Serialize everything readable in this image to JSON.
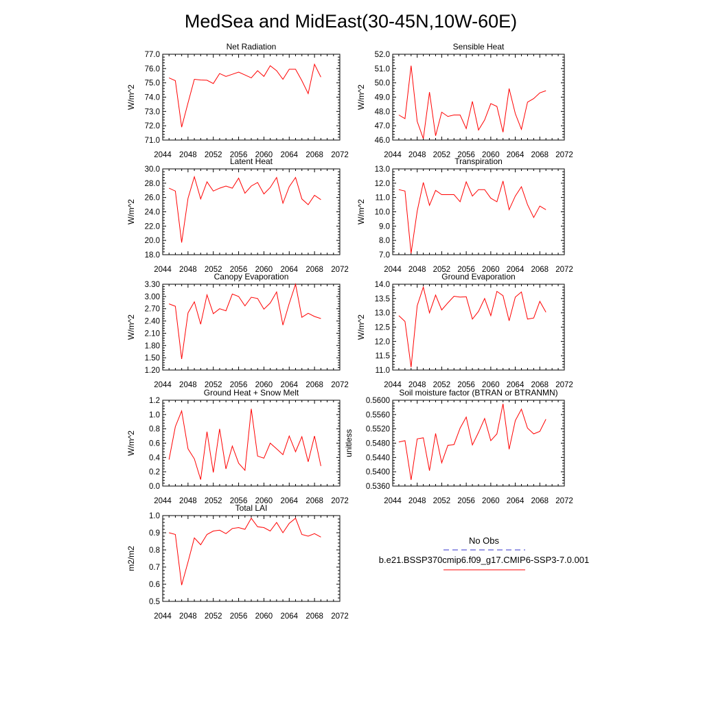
{
  "title": "MedSea and MidEast(30-45N,10W-60E)",
  "legend": {
    "obs_label": "No Obs",
    "obs_color": "#3333cc",
    "model_label": "b.e21.BSSP370cmip6.f09_g17.CMIP6-SSP3-7.0.001",
    "model_color": "#ff0000"
  },
  "chart_data": [
    {
      "type": "line",
      "title": "Net Radiation",
      "ylabel": "W/m^2",
      "xlim": [
        2044,
        2072
      ],
      "ylim": [
        71.0,
        77.0
      ],
      "xticks": [
        2044,
        2048,
        2052,
        2056,
        2060,
        2064,
        2068,
        2072
      ],
      "yticks": [
        "71.0",
        "72.0",
        "73.0",
        "74.0",
        "75.0",
        "76.0",
        "77.0"
      ],
      "x": [
        2045,
        2046,
        2047,
        2048,
        2049,
        2050,
        2051,
        2052,
        2053,
        2054,
        2055,
        2056,
        2057,
        2058,
        2059,
        2060,
        2061,
        2062,
        2063,
        2064,
        2065,
        2066,
        2067,
        2068,
        2069
      ],
      "series": [
        {
          "values": [
            75.35,
            75.15,
            71.9,
            73.6,
            75.25,
            75.2,
            75.18,
            74.95,
            75.65,
            75.45,
            75.6,
            75.75,
            75.55,
            75.35,
            75.85,
            75.45,
            76.2,
            75.85,
            75.25,
            75.95,
            75.95,
            75.15,
            74.25,
            76.3,
            75.4
          ]
        }
      ]
    },
    {
      "type": "line",
      "title": "Sensible Heat",
      "ylabel": "W/m^2",
      "xlim": [
        2044,
        2072
      ],
      "ylim": [
        46.0,
        52.0
      ],
      "xticks": [
        2044,
        2048,
        2052,
        2056,
        2060,
        2064,
        2068,
        2072
      ],
      "yticks": [
        "46.0",
        "47.0",
        "48.0",
        "49.0",
        "50.0",
        "51.0",
        "52.0"
      ],
      "x": [
        2045,
        2046,
        2047,
        2048,
        2049,
        2050,
        2051,
        2052,
        2053,
        2054,
        2055,
        2056,
        2057,
        2058,
        2059,
        2060,
        2061,
        2062,
        2063,
        2064,
        2065,
        2066,
        2067,
        2068,
        2069
      ],
      "series": [
        {
          "values": [
            47.75,
            47.5,
            51.2,
            47.3,
            46.1,
            49.35,
            46.3,
            47.95,
            47.65,
            47.75,
            47.75,
            46.8,
            48.7,
            46.7,
            47.4,
            48.55,
            48.35,
            46.55,
            49.6,
            47.85,
            46.75,
            48.65,
            48.9,
            49.3,
            49.45
          ]
        }
      ]
    },
    {
      "type": "line",
      "title": "Latent Heat",
      "ylabel": "W/m^2",
      "xlim": [
        2044,
        2072
      ],
      "ylim": [
        18.0,
        30.0
      ],
      "xticks": [
        2044,
        2048,
        2052,
        2056,
        2060,
        2064,
        2068,
        2072
      ],
      "yticks": [
        "18.0",
        "20.0",
        "22.0",
        "24.0",
        "26.0",
        "28.0",
        "30.0"
      ],
      "x": [
        2045,
        2046,
        2047,
        2048,
        2049,
        2050,
        2051,
        2052,
        2053,
        2054,
        2055,
        2056,
        2057,
        2058,
        2059,
        2060,
        2061,
        2062,
        2063,
        2064,
        2065,
        2066,
        2067,
        2068,
        2069
      ],
      "series": [
        {
          "values": [
            27.3,
            26.9,
            19.7,
            25.9,
            28.9,
            25.8,
            28.2,
            26.9,
            27.3,
            27.6,
            27.3,
            28.7,
            26.6,
            27.6,
            28.1,
            26.5,
            27.4,
            28.8,
            25.2,
            27.5,
            28.8,
            25.8,
            25.0,
            26.3,
            25.7
          ]
        }
      ]
    },
    {
      "type": "line",
      "title": "Transpiration",
      "ylabel": "W/m^2",
      "xlim": [
        2044,
        2072
      ],
      "ylim": [
        7.0,
        13.0
      ],
      "xticks": [
        2044,
        2048,
        2052,
        2056,
        2060,
        2064,
        2068,
        2072
      ],
      "yticks": [
        "7.0",
        "8.0",
        "9.0",
        "10.0",
        "11.0",
        "12.0",
        "13.0"
      ],
      "x": [
        2045,
        2046,
        2047,
        2048,
        2049,
        2050,
        2051,
        2052,
        2053,
        2054,
        2055,
        2056,
        2057,
        2058,
        2059,
        2060,
        2061,
        2062,
        2063,
        2064,
        2065,
        2066,
        2067,
        2068,
        2069
      ],
      "series": [
        {
          "values": [
            11.55,
            11.45,
            7.1,
            10.05,
            12.05,
            10.45,
            11.5,
            11.2,
            11.2,
            11.2,
            10.7,
            12.1,
            11.1,
            11.55,
            11.55,
            10.95,
            10.7,
            12.15,
            10.15,
            11.1,
            11.75,
            10.5,
            9.6,
            10.4,
            10.15
          ]
        }
      ]
    },
    {
      "type": "line",
      "title": "Canopy Evaporation",
      "ylabel": "W/m^2",
      "xlim": [
        2044,
        2072
      ],
      "ylim": [
        1.2,
        3.3
      ],
      "xticks": [
        2044,
        2048,
        2052,
        2056,
        2060,
        2064,
        2068,
        2072
      ],
      "yticks": [
        "1.20",
        "1.50",
        "1.80",
        "2.10",
        "2.40",
        "2.70",
        "3.00",
        "3.30"
      ],
      "x": [
        2045,
        2046,
        2047,
        2048,
        2049,
        2050,
        2051,
        2052,
        2053,
        2054,
        2055,
        2056,
        2057,
        2058,
        2059,
        2060,
        2061,
        2062,
        2063,
        2064,
        2065,
        2066,
        2067,
        2068,
        2069
      ],
      "series": [
        {
          "values": [
            2.82,
            2.76,
            1.47,
            2.6,
            2.87,
            2.32,
            3.04,
            2.58,
            2.7,
            2.65,
            3.06,
            3.0,
            2.77,
            2.98,
            2.95,
            2.69,
            2.84,
            3.11,
            2.3,
            2.83,
            3.3,
            2.49,
            2.59,
            2.51,
            2.46
          ]
        }
      ]
    },
    {
      "type": "line",
      "title": "Ground Evaporation",
      "ylabel": "W/m^2",
      "xlim": [
        2044,
        2072
      ],
      "ylim": [
        11.0,
        14.0
      ],
      "xticks": [
        2044,
        2048,
        2052,
        2056,
        2060,
        2064,
        2068,
        2072
      ],
      "yticks": [
        "11.0",
        "11.5",
        "12.0",
        "12.5",
        "13.0",
        "13.5",
        "14.0"
      ],
      "x": [
        2045,
        2046,
        2047,
        2048,
        2049,
        2050,
        2051,
        2052,
        2053,
        2054,
        2055,
        2056,
        2057,
        2058,
        2059,
        2060,
        2061,
        2062,
        2063,
        2064,
        2065,
        2066,
        2067,
        2068,
        2069
      ],
      "series": [
        {
          "values": [
            12.9,
            12.7,
            11.1,
            13.25,
            13.9,
            13.0,
            13.62,
            13.1,
            13.35,
            13.58,
            13.55,
            13.56,
            12.78,
            13.05,
            13.5,
            12.9,
            13.75,
            13.6,
            12.72,
            13.55,
            13.73,
            12.78,
            12.82,
            13.4,
            13.02
          ]
        }
      ]
    },
    {
      "type": "line",
      "title": "Ground Heat + Snow Melt",
      "ylabel": "W/m^2",
      "xlim": [
        2044,
        2072
      ],
      "ylim": [
        0.0,
        1.2
      ],
      "xticks": [
        2044,
        2048,
        2052,
        2056,
        2060,
        2064,
        2068,
        2072
      ],
      "yticks": [
        "0.0",
        "0.2",
        "0.4",
        "0.6",
        "0.8",
        "1.0",
        "1.2"
      ],
      "x": [
        2045,
        2046,
        2047,
        2048,
        2049,
        2050,
        2051,
        2052,
        2053,
        2054,
        2055,
        2056,
        2057,
        2058,
        2059,
        2060,
        2061,
        2062,
        2063,
        2064,
        2065,
        2066,
        2067,
        2068,
        2069
      ],
      "series": [
        {
          "values": [
            0.37,
            0.83,
            1.05,
            0.52,
            0.38,
            0.09,
            0.76,
            0.19,
            0.8,
            0.24,
            0.56,
            0.32,
            0.22,
            1.08,
            0.42,
            0.39,
            0.6,
            0.52,
            0.44,
            0.7,
            0.48,
            0.69,
            0.34,
            0.7,
            0.28
          ]
        }
      ]
    },
    {
      "type": "line",
      "title": "Soil moisture factor (BTRAN or BTRANMN)",
      "ylabel": "unitless",
      "xlim": [
        2044,
        2072
      ],
      "ylim": [
        0.536,
        0.56
      ],
      "xticks": [
        2044,
        2048,
        2052,
        2056,
        2060,
        2064,
        2068,
        2072
      ],
      "yticks": [
        "0.5360",
        "0.5400",
        "0.5440",
        "0.5480",
        "0.5520",
        "0.5560",
        "0.5600"
      ],
      "x": [
        2045,
        2046,
        2047,
        2048,
        2049,
        2050,
        2051,
        2052,
        2053,
        2054,
        2055,
        2056,
        2057,
        2058,
        2059,
        2060,
        2061,
        2062,
        2063,
        2064,
        2065,
        2066,
        2067,
        2068,
        2069
      ],
      "series": [
        {
          "values": [
            0.5483,
            0.5487,
            0.5377,
            0.5492,
            0.5495,
            0.5403,
            0.5507,
            0.5425,
            0.5474,
            0.5476,
            0.5522,
            0.5553,
            0.5475,
            0.551,
            0.5549,
            0.5487,
            0.5506,
            0.559,
            0.5463,
            0.5543,
            0.5575,
            0.5522,
            0.5506,
            0.5513,
            0.5547
          ]
        }
      ]
    },
    {
      "type": "line",
      "title": "Total LAI",
      "ylabel": "m2/m2",
      "xlim": [
        2044,
        2072
      ],
      "ylim": [
        0.5,
        1.0
      ],
      "xticks": [
        2044,
        2048,
        2052,
        2056,
        2060,
        2064,
        2068,
        2072
      ],
      "yticks": [
        "0.5",
        "0.6",
        "0.7",
        "0.8",
        "0.9",
        "1.0"
      ],
      "x": [
        2045,
        2046,
        2047,
        2048,
        2049,
        2050,
        2051,
        2052,
        2053,
        2054,
        2055,
        2056,
        2057,
        2058,
        2059,
        2060,
        2061,
        2062,
        2063,
        2064,
        2065,
        2066,
        2067,
        2068,
        2069
      ],
      "series": [
        {
          "values": [
            0.9,
            0.89,
            0.595,
            0.73,
            0.87,
            0.83,
            0.89,
            0.91,
            0.915,
            0.895,
            0.925,
            0.93,
            0.92,
            0.985,
            0.935,
            0.93,
            0.91,
            0.96,
            0.9,
            0.955,
            0.985,
            0.89,
            0.88,
            0.895,
            0.875
          ]
        }
      ]
    }
  ]
}
